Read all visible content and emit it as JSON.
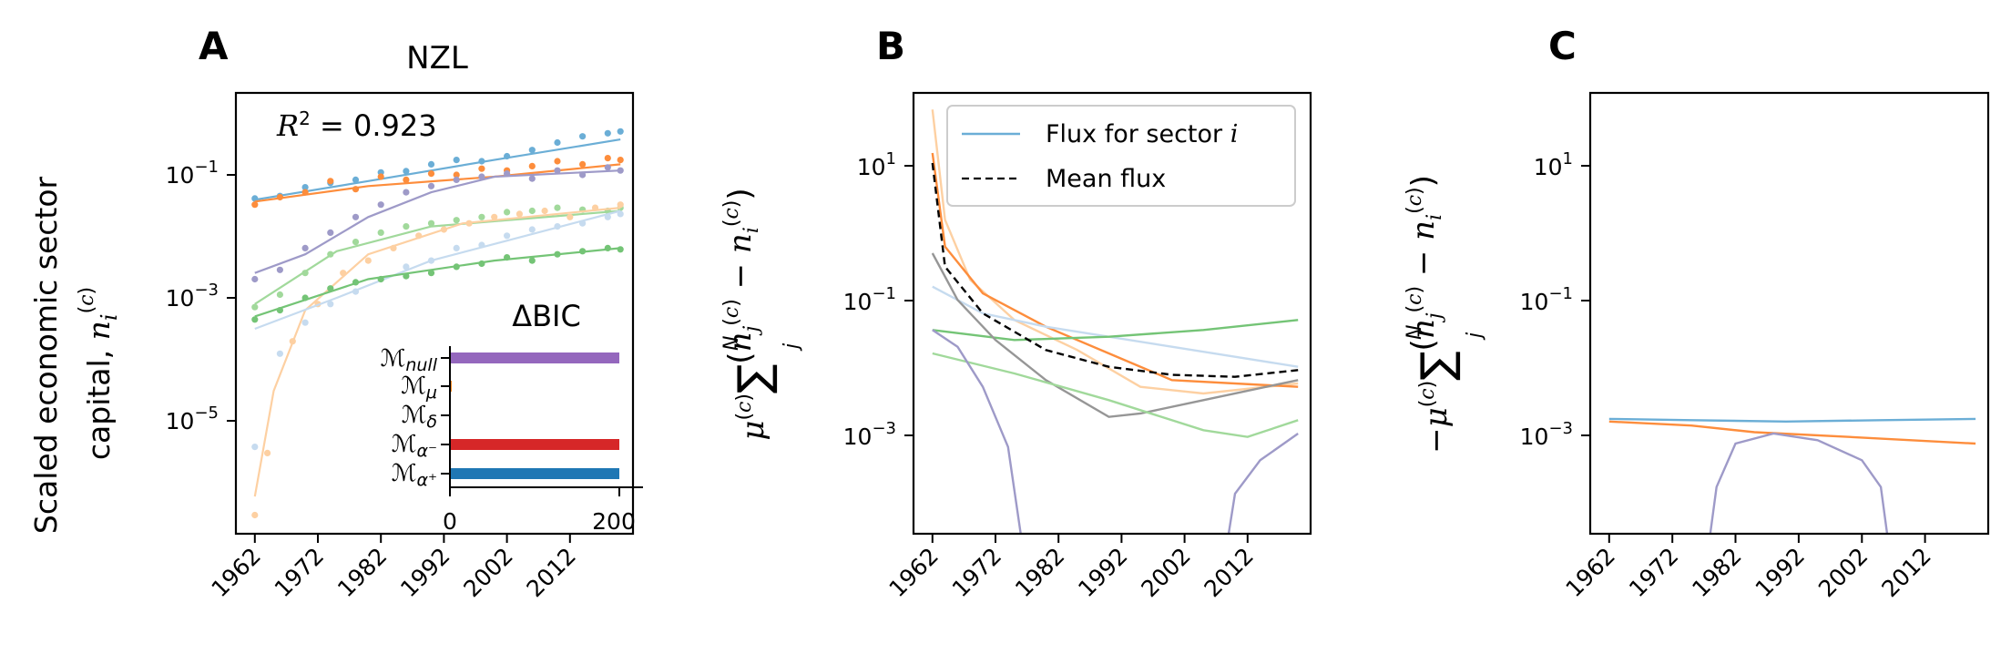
{
  "figure": {
    "panels": [
      {
        "id": "A",
        "letter": "A",
        "title": "NZL"
      },
      {
        "id": "B",
        "letter": "B",
        "title": ""
      },
      {
        "id": "C",
        "letter": "C",
        "title": ""
      }
    ],
    "ylabel_A_line1": "Scaled economic sector",
    "ylabel_A_line2": "capital, n_i^(c)",
    "ylabel_B": "μ^(c) Σ_j^N (n_j^(c) − n_i^(c))",
    "ylabel_C": "−μ^(c) Σ_j^N (n_j^(c) − n_i^(c))",
    "r2_label": "R² = 0.923",
    "inset_title": "ΔBIC",
    "inset_models": [
      "M_null",
      "M_μ",
      "M_δ",
      "M_α⁻",
      "M_α⁺"
    ],
    "inset_xticks": [
      "0",
      "200"
    ],
    "legend": [
      "Flux for sector i",
      "Mean flux"
    ],
    "xticks": [
      "1962",
      "1972",
      "1982",
      "1992",
      "2002",
      "2012"
    ],
    "yticks_A": [
      "10^-1",
      "10^-3",
      "10^-5"
    ],
    "yticks_BC": [
      "10^1",
      "10^-1",
      "10^-3"
    ]
  },
  "chart_data": [
    {
      "type": "scatter",
      "panel": "A",
      "title": "NZL",
      "xlabel": "",
      "ylabel": "Scaled economic sector capital, n_i^(c)",
      "yscale": "log",
      "xlim": [
        1959,
        2022
      ],
      "ylim_log10": [
        -6.8,
        0.3
      ],
      "annotation": "R² = 0.923",
      "series": [
        {
          "color": "#6baed6",
          "fit": [
            [
              1962,
              -1.42
            ],
            [
              1980,
              -1.12
            ],
            [
              2000,
              -0.78
            ],
            [
              2020,
              -0.45
            ]
          ],
          "points": [
            [
              1962,
              -1.4
            ],
            [
              1966,
              -1.36
            ],
            [
              1970,
              -1.22
            ],
            [
              1974,
              -1.15
            ],
            [
              1978,
              -1.1
            ],
            [
              1982,
              -0.98
            ],
            [
              1986,
              -0.96
            ],
            [
              1990,
              -0.85
            ],
            [
              1994,
              -0.78
            ],
            [
              1998,
              -0.8
            ],
            [
              2002,
              -0.72
            ],
            [
              2006,
              -0.62
            ],
            [
              2010,
              -0.5
            ],
            [
              2014,
              -0.4
            ],
            [
              2018,
              -0.35
            ],
            [
              2020,
              -0.32
            ]
          ]
        },
        {
          "color": "#fd8d3c",
          "fit": [
            [
              1962,
              -1.45
            ],
            [
              1980,
              -1.2
            ],
            [
              2000,
              -1.05
            ],
            [
              2020,
              -0.85
            ]
          ],
          "points": [
            [
              1962,
              -1.5
            ],
            [
              1966,
              -1.38
            ],
            [
              1970,
              -1.3
            ],
            [
              1974,
              -1.12
            ],
            [
              1978,
              -1.25
            ],
            [
              1982,
              -1.05
            ],
            [
              1986,
              -1.1
            ],
            [
              1990,
              -1.0
            ],
            [
              1994,
              -1.02
            ],
            [
              1998,
              -0.92
            ],
            [
              2002,
              -0.95
            ],
            [
              2006,
              -0.88
            ],
            [
              2010,
              -0.8
            ],
            [
              2014,
              -0.85
            ],
            [
              2018,
              -0.75
            ],
            [
              2020,
              -0.78
            ]
          ]
        },
        {
          "color": "#9e9ac8",
          "fit": [
            [
              1962,
              -2.6
            ],
            [
              1970,
              -2.3
            ],
            [
              1980,
              -1.7
            ],
            [
              1990,
              -1.3
            ],
            [
              2000,
              -1.05
            ],
            [
              2020,
              -0.95
            ]
          ],
          "points": [
            [
              1962,
              -2.7
            ],
            [
              1966,
              -2.55
            ],
            [
              1970,
              -2.2
            ],
            [
              1974,
              -1.95
            ],
            [
              1978,
              -1.7
            ],
            [
              1982,
              -1.5
            ],
            [
              1986,
              -1.3
            ],
            [
              1990,
              -1.2
            ],
            [
              1994,
              -1.1
            ],
            [
              1998,
              -1.05
            ],
            [
              2002,
              -1.0
            ],
            [
              2006,
              -1.08
            ],
            [
              2010,
              -0.95
            ],
            [
              2014,
              -1.02
            ],
            [
              2018,
              -0.9
            ],
            [
              2020,
              -0.95
            ]
          ]
        },
        {
          "color": "#a1d99b",
          "fit": [
            [
              1962,
              -3.1
            ],
            [
              1975,
              -2.25
            ],
            [
              1990,
              -1.85
            ],
            [
              2020,
              -1.6
            ]
          ],
          "points": [
            [
              1962,
              -3.15
            ],
            [
              1966,
              -2.95
            ],
            [
              1970,
              -2.6
            ],
            [
              1974,
              -2.3
            ],
            [
              1978,
              -2.1
            ],
            [
              1982,
              -1.95
            ],
            [
              1986,
              -1.85
            ],
            [
              1990,
              -1.8
            ],
            [
              1994,
              -1.75
            ],
            [
              1998,
              -1.7
            ],
            [
              2002,
              -1.62
            ],
            [
              2006,
              -1.6
            ],
            [
              2010,
              -1.55
            ],
            [
              2014,
              -1.58
            ],
            [
              2018,
              -1.6
            ],
            [
              2020,
              -1.55
            ]
          ]
        },
        {
          "color": "#fdd0a2",
          "fit": [
            [
              1962,
              -6.2
            ],
            [
              1965,
              -4.5
            ],
            [
              1970,
              -3.2
            ],
            [
              1980,
              -2.3
            ],
            [
              1995,
              -1.8
            ],
            [
              2020,
              -1.55
            ]
          ],
          "points": [
            [
              1962,
              -6.5
            ],
            [
              1964,
              -5.5
            ],
            [
              1968,
              -3.7
            ],
            [
              1972,
              -3.1
            ],
            [
              1976,
              -2.6
            ],
            [
              1980,
              -2.4
            ],
            [
              1984,
              -2.2
            ],
            [
              1988,
              -2.0
            ],
            [
              1992,
              -1.9
            ],
            [
              1996,
              -1.8
            ],
            [
              2000,
              -1.7
            ],
            [
              2004,
              -1.65
            ],
            [
              2008,
              -1.6
            ],
            [
              2012,
              -1.7
            ],
            [
              2016,
              -1.55
            ],
            [
              2020,
              -1.5
            ]
          ]
        },
        {
          "color": "#c6dbef",
          "fit": [
            [
              1962,
              -3.5
            ],
            [
              1975,
              -3.0
            ],
            [
              1990,
              -2.4
            ],
            [
              2005,
              -2.0
            ],
            [
              2020,
              -1.6
            ]
          ],
          "points": [
            [
              1962,
              -5.4
            ],
            [
              1966,
              -3.9
            ],
            [
              1970,
              -3.4
            ],
            [
              1974,
              -3.1
            ],
            [
              1978,
              -2.9
            ],
            [
              1982,
              -2.7
            ],
            [
              1986,
              -2.5
            ],
            [
              1990,
              -2.4
            ],
            [
              1994,
              -2.2
            ],
            [
              1998,
              -2.15
            ],
            [
              2002,
              -2.0
            ],
            [
              2006,
              -1.9
            ],
            [
              2010,
              -1.85
            ],
            [
              2014,
              -1.8
            ],
            [
              2018,
              -1.7
            ],
            [
              2020,
              -1.65
            ]
          ]
        },
        {
          "color": "#74c476",
          "fit": [
            [
              1962,
              -3.3
            ],
            [
              1980,
              -2.7
            ],
            [
              2000,
              -2.4
            ],
            [
              2020,
              -2.2
            ]
          ],
          "points": [
            [
              1962,
              -3.35
            ],
            [
              1966,
              -3.2
            ],
            [
              1970,
              -3.0
            ],
            [
              1974,
              -2.85
            ],
            [
              1978,
              -2.75
            ],
            [
              1982,
              -2.7
            ],
            [
              1986,
              -2.65
            ],
            [
              1990,
              -2.6
            ],
            [
              1994,
              -2.5
            ],
            [
              1998,
              -2.45
            ],
            [
              2002,
              -2.35
            ],
            [
              2006,
              -2.4
            ],
            [
              2010,
              -2.3
            ],
            [
              2014,
              -2.25
            ],
            [
              2018,
              -2.2
            ],
            [
              2020,
              -2.22
            ]
          ]
        }
      ]
    },
    {
      "type": "bar",
      "panel": "A-inset",
      "title": "ΔBIC",
      "orientation": "horizontal",
      "categories": [
        "M_null",
        "M_μ",
        "M_δ",
        "M_α⁻",
        "M_α⁺"
      ],
      "values": [
        200,
        2,
        0,
        200,
        200
      ],
      "colors": [
        "#9467bd",
        "#ff7f0e",
        "#2ca02c",
        "#d62728",
        "#1f77b4"
      ],
      "xlim": [
        0,
        220
      ]
    },
    {
      "type": "line",
      "panel": "B",
      "ylabel": "μ^(c) Σ_j^N (n_j^(c) − n_i^(c))",
      "yscale": "log",
      "xlim": [
        1959,
        2022
      ],
      "ylim_log10": [
        -4.5,
        2.1
      ],
      "legend": [
        "Flux for sector i",
        "Mean flux"
      ],
      "series": [
        {
          "color": "#fdd0a2",
          "points": [
            [
              1962,
              1.85
            ],
            [
              1964,
              0.2
            ],
            [
              1968,
              -0.7
            ],
            [
              1975,
              -1.3
            ],
            [
              1985,
              -1.75
            ],
            [
              1995,
              -2.3
            ],
            [
              2005,
              -2.4
            ],
            [
              2020,
              -2.25
            ]
          ]
        },
        {
          "color": "#fd8d3c",
          "points": [
            [
              1962,
              1.2
            ],
            [
              1964,
              -0.2
            ],
            [
              1970,
              -0.9
            ],
            [
              1980,
              -1.4
            ],
            [
              1990,
              -1.8
            ],
            [
              2000,
              -2.2
            ],
            [
              2020,
              -2.3
            ]
          ]
        },
        {
          "color": "#c6dbef",
          "points": [
            [
              1962,
              -0.8
            ],
            [
              1970,
              -1.2
            ],
            [
              1980,
              -1.4
            ],
            [
              1990,
              -1.55
            ],
            [
              2000,
              -1.7
            ],
            [
              2010,
              -1.85
            ],
            [
              2020,
              -2.0
            ]
          ]
        },
        {
          "color": "#74c476",
          "points": [
            [
              1962,
              -1.45
            ],
            [
              1975,
              -1.6
            ],
            [
              1990,
              -1.55
            ],
            [
              2005,
              -1.45
            ],
            [
              2020,
              -1.3
            ]
          ]
        },
        {
          "color": "#969696",
          "points": [
            [
              1962,
              -0.3
            ],
            [
              1966,
              -1.0
            ],
            [
              1972,
              -1.6
            ],
            [
              1980,
              -2.2
            ],
            [
              1990,
              -2.75
            ],
            [
              1995,
              -2.7
            ],
            [
              2005,
              -2.5
            ],
            [
              2020,
              -2.2
            ]
          ]
        },
        {
          "color": "#a1d99b",
          "points": [
            [
              1962,
              -1.8
            ],
            [
              1975,
              -2.1
            ],
            [
              1990,
              -2.5
            ],
            [
              2005,
              -2.95
            ],
            [
              2012,
              -3.05
            ],
            [
              2020,
              -2.8
            ]
          ]
        },
        {
          "color": "#9e9ac8",
          "points": [
            [
              1962,
              -1.45
            ],
            [
              1966,
              -1.7
            ],
            [
              1970,
              -2.3
            ],
            [
              1974,
              -3.2
            ],
            [
              1976,
              -4.5
            ]
          ]
        },
        {
          "color": "#9e9ac8",
          "points": [
            [
              2009,
              -4.5
            ],
            [
              2010,
              -3.9
            ],
            [
              2014,
              -3.4
            ],
            [
              2020,
              -3.0
            ]
          ]
        },
        {
          "color": "#000000",
          "dashed": true,
          "points": [
            [
              1962,
              1.05
            ],
            [
              1964,
              -0.5
            ],
            [
              1970,
              -1.2
            ],
            [
              1980,
              -1.75
            ],
            [
              1990,
              -2.0
            ],
            [
              2000,
              -2.12
            ],
            [
              2010,
              -2.15
            ],
            [
              2020,
              -2.05
            ]
          ]
        }
      ]
    },
    {
      "type": "line",
      "panel": "C",
      "ylabel": "−μ^(c) Σ_j^N (n_j^(c) − n_i^(c))",
      "yscale": "log",
      "xlim": [
        1959,
        2022
      ],
      "ylim_log10": [
        -4.5,
        2.1
      ],
      "series": [
        {
          "color": "#6baed6",
          "points": [
            [
              1962,
              -2.78
            ],
            [
              1975,
              -2.8
            ],
            [
              1990,
              -2.82
            ],
            [
              2005,
              -2.8
            ],
            [
              2020,
              -2.78
            ]
          ]
        },
        {
          "color": "#fd8d3c",
          "points": [
            [
              1962,
              -2.82
            ],
            [
              1975,
              -2.88
            ],
            [
              1985,
              -2.98
            ],
            [
              2000,
              -3.05
            ],
            [
              2020,
              -3.15
            ]
          ]
        },
        {
          "color": "#9e9ac8",
          "points": [
            [
              1978,
              -4.5
            ],
            [
              1979,
              -3.8
            ],
            [
              1982,
              -3.15
            ],
            [
              1988,
              -3.0
            ],
            [
              1995,
              -3.1
            ],
            [
              2002,
              -3.4
            ],
            [
              2005,
              -3.8
            ],
            [
              2006,
              -4.5
            ]
          ]
        }
      ]
    }
  ]
}
